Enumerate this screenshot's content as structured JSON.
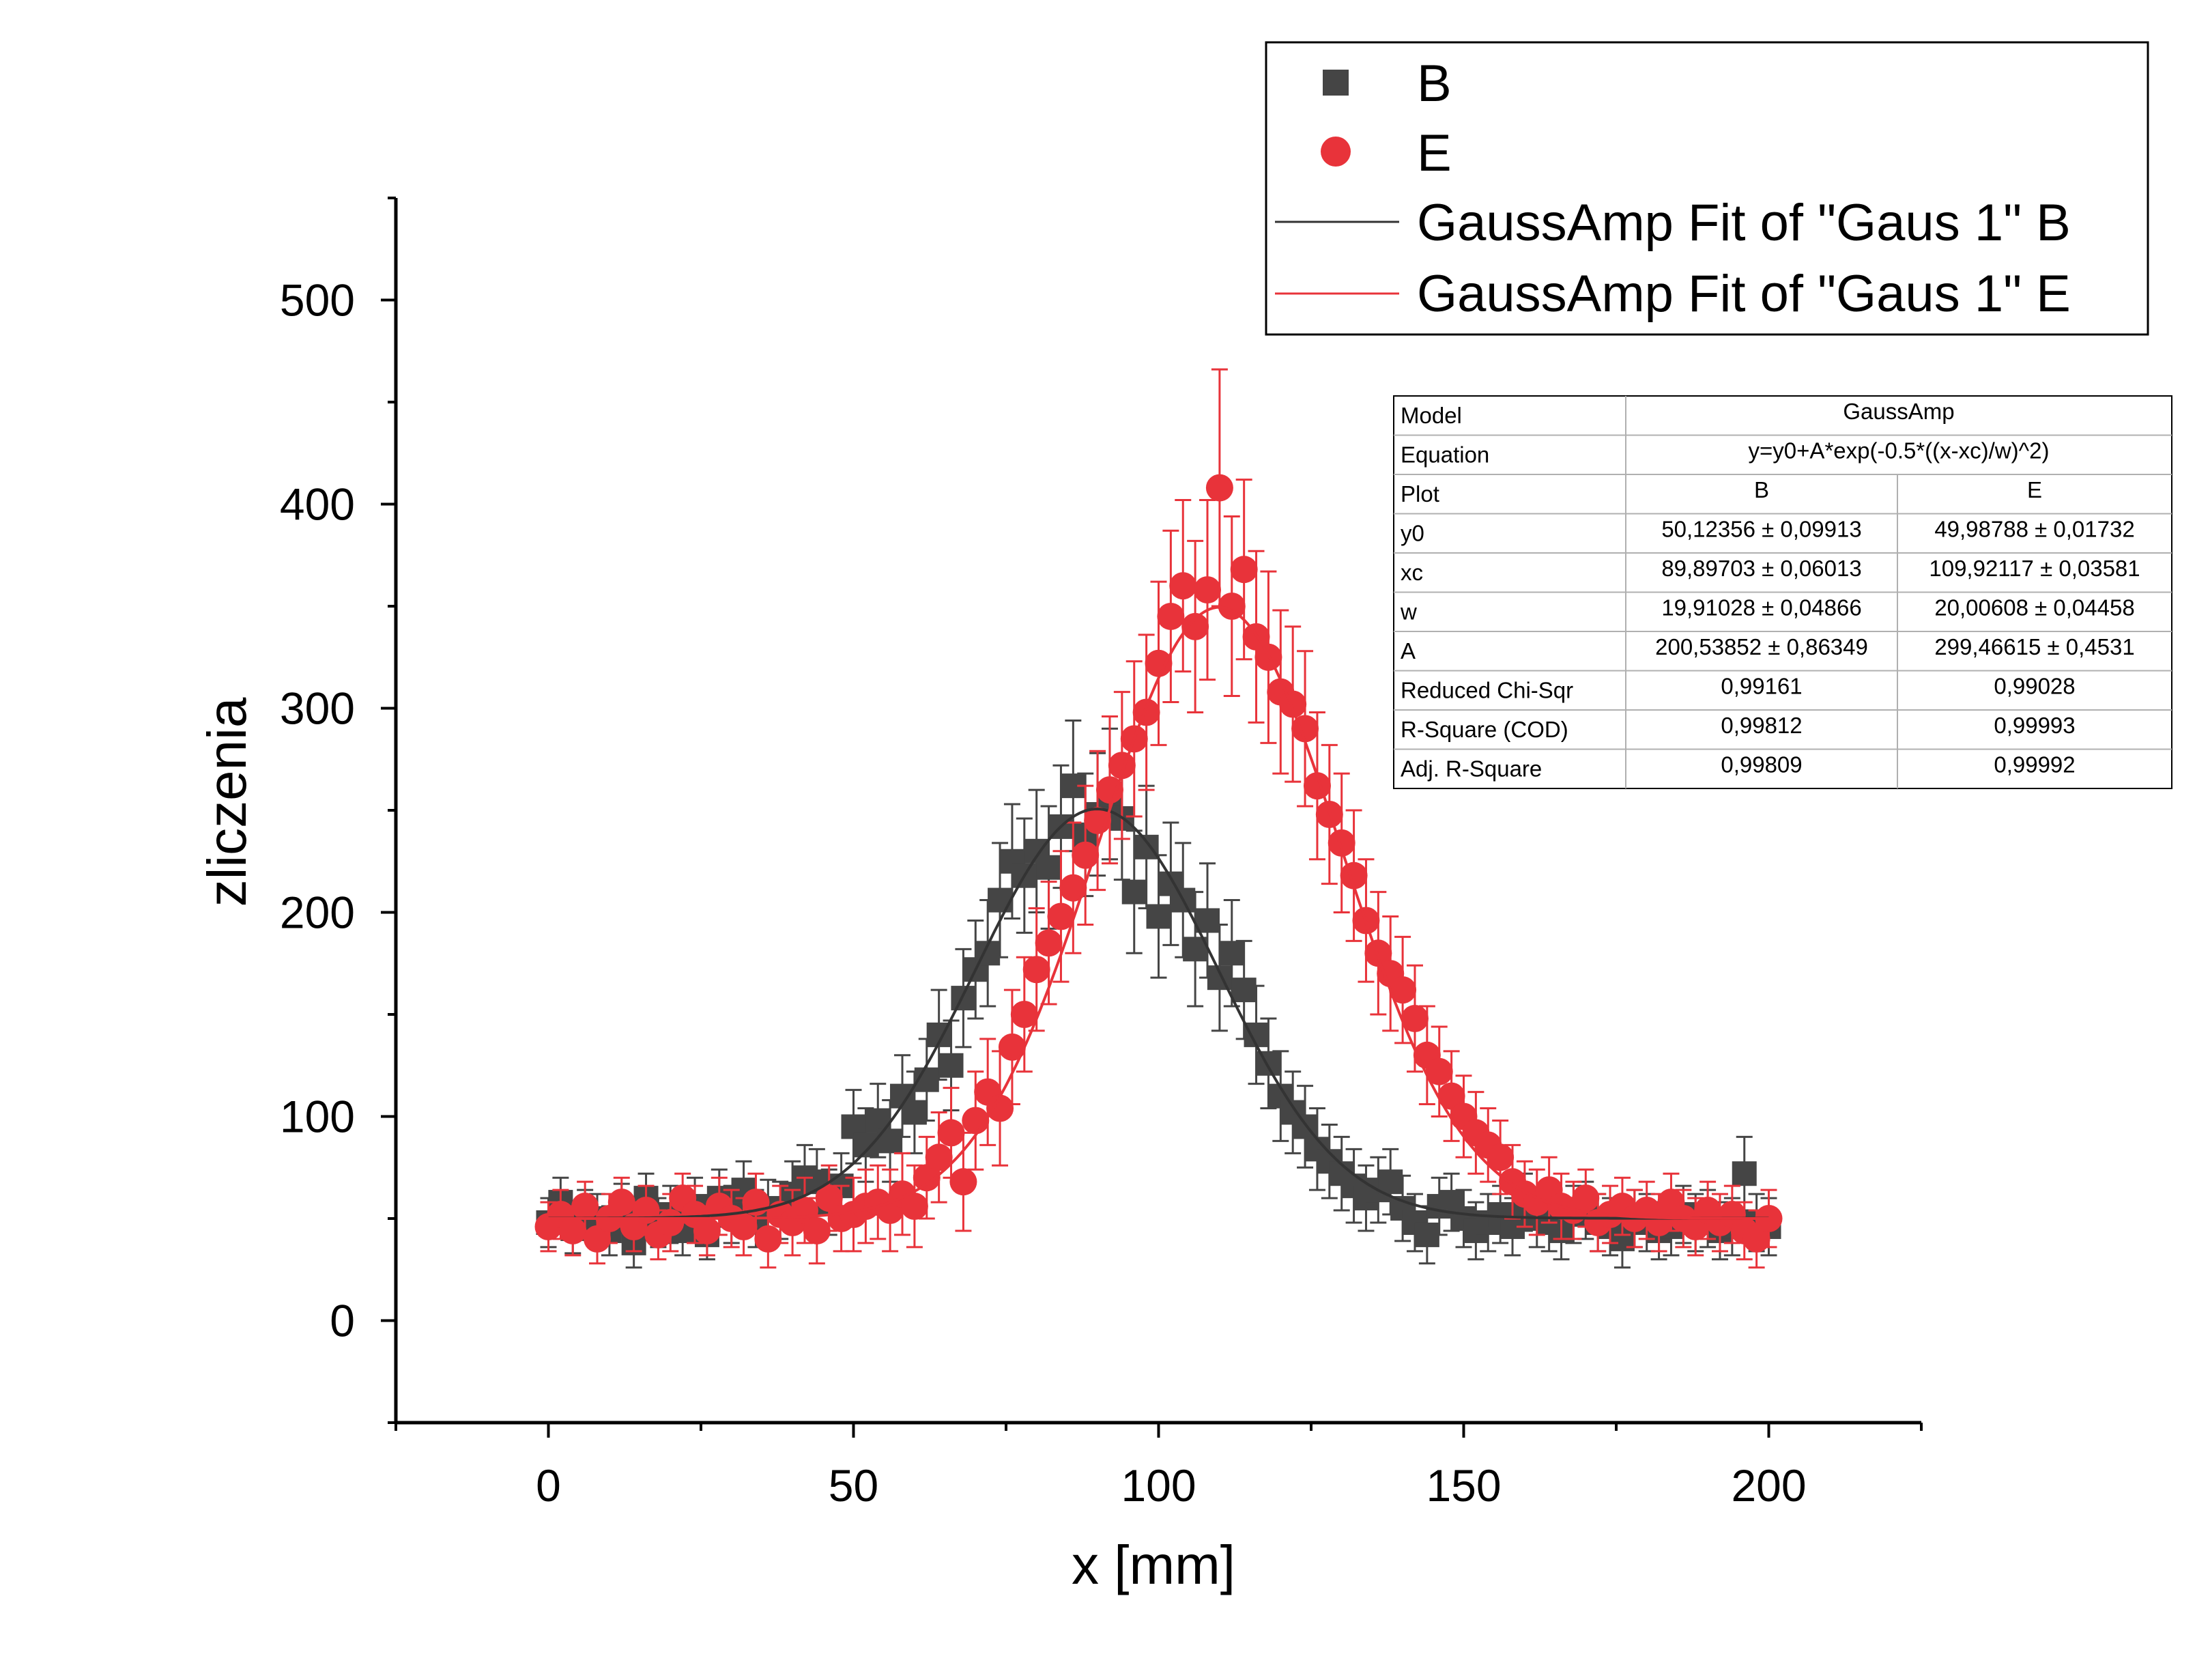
{
  "chart_data": {
    "type": "scatter",
    "xlabel": "x [mm]",
    "ylabel": "zliczenia",
    "xlim": [
      -25,
      225
    ],
    "ylim": [
      -50,
      550
    ],
    "xticks": [
      0,
      50,
      100,
      150,
      200
    ],
    "yticks": [
      0,
      100,
      200,
      300,
      400,
      500
    ],
    "xtick_labels": [
      "0",
      "50",
      "100",
      "150",
      "200"
    ],
    "ytick_labels": [
      "0",
      "100",
      "200",
      "300",
      "400",
      "500"
    ],
    "legend_position": "top-right",
    "series": [
      {
        "name": "B",
        "marker": "square",
        "color": "#454545",
        "x": [
          0,
          2,
          4,
          6,
          8,
          10,
          12,
          14,
          16,
          18,
          20,
          22,
          24,
          26,
          28,
          30,
          32,
          34,
          36,
          38,
          40,
          42,
          44,
          46,
          48,
          50,
          52,
          54,
          56,
          58,
          60,
          62,
          64,
          66,
          68,
          70,
          72,
          74,
          76,
          78,
          80,
          82,
          84,
          86,
          88,
          90,
          92,
          94,
          96,
          98,
          100,
          102,
          104,
          106,
          108,
          110,
          112,
          114,
          116,
          118,
          120,
          122,
          124,
          126,
          128,
          130,
          132,
          134,
          136,
          138,
          140,
          142,
          144,
          146,
          148,
          150,
          152,
          154,
          156,
          158,
          160,
          162,
          164,
          166,
          168,
          170,
          172,
          174,
          176,
          178,
          180,
          182,
          184,
          186,
          188,
          190,
          192,
          194,
          196,
          198,
          200
        ],
        "y": [
          48,
          58,
          45,
          52,
          50,
          44,
          55,
          38,
          60,
          48,
          52,
          44,
          56,
          42,
          60,
          52,
          64,
          50,
          55,
          54,
          62,
          70,
          68,
          58,
          66,
          95,
          86,
          98,
          88,
          110,
          102,
          118,
          140,
          125,
          158,
          172,
          180,
          206,
          225,
          218,
          230,
          222,
          242,
          262,
          238,
          248,
          258,
          246,
          210,
          232,
          198,
          214,
          206,
          182,
          196,
          168,
          180,
          162,
          140,
          126,
          110,
          102,
          95,
          84,
          78,
          72,
          66,
          60,
          64,
          68,
          55,
          48,
          42,
          56,
          58,
          50,
          44,
          48,
          52,
          46,
          58,
          50,
          48,
          44,
          52,
          54,
          48,
          46,
          40,
          50,
          48,
          44,
          46,
          52,
          48,
          50,
          44,
          46,
          72,
          48,
          46
        ],
        "err": [
          12,
          12,
          12,
          12,
          12,
          12,
          12,
          12,
          12,
          12,
          14,
          12,
          14,
          12,
          14,
          14,
          14,
          14,
          14,
          14,
          16,
          16,
          16,
          16,
          16,
          18,
          18,
          18,
          20,
          20,
          20,
          20,
          22,
          22,
          24,
          24,
          26,
          28,
          28,
          28,
          30,
          30,
          30,
          32,
          30,
          30,
          32,
          30,
          30,
          30,
          30,
          30,
          28,
          28,
          28,
          26,
          26,
          24,
          24,
          22,
          22,
          20,
          20,
          20,
          18,
          18,
          18,
          16,
          16,
          16,
          16,
          14,
          14,
          14,
          14,
          14,
          14,
          14,
          14,
          14,
          14,
          14,
          14,
          14,
          14,
          14,
          14,
          14,
          14,
          14,
          14,
          14,
          14,
          14,
          14,
          14,
          14,
          14,
          18,
          14,
          14
        ]
      },
      {
        "name": "E",
        "marker": "circle",
        "color": "#e8333a",
        "x": [
          0,
          2,
          4,
          6,
          8,
          10,
          12,
          14,
          16,
          18,
          20,
          22,
          24,
          26,
          28,
          30,
          32,
          34,
          36,
          38,
          40,
          42,
          44,
          46,
          48,
          50,
          52,
          54,
          56,
          58,
          60,
          62,
          64,
          66,
          68,
          70,
          72,
          74,
          76,
          78,
          80,
          82,
          84,
          86,
          88,
          90,
          92,
          94,
          96,
          98,
          100,
          102,
          104,
          106,
          108,
          110,
          112,
          114,
          116,
          118,
          120,
          122,
          124,
          126,
          128,
          130,
          132,
          134,
          136,
          138,
          140,
          142,
          144,
          146,
          148,
          150,
          152,
          154,
          156,
          158,
          160,
          162,
          164,
          166,
          168,
          170,
          172,
          174,
          176,
          178,
          180,
          182,
          184,
          186,
          188,
          190,
          192,
          194,
          196,
          198,
          200
        ],
        "y": [
          46,
          52,
          44,
          56,
          40,
          50,
          58,
          46,
          54,
          42,
          48,
          60,
          52,
          44,
          56,
          50,
          46,
          58,
          40,
          52,
          48,
          54,
          44,
          60,
          50,
          52,
          56,
          58,
          54,
          62,
          56,
          70,
          80,
          92,
          68,
          98,
          112,
          104,
          134,
          150,
          172,
          185,
          198,
          212,
          228,
          245,
          260,
          272,
          285,
          298,
          322,
          345,
          360,
          340,
          358,
          408,
          350,
          368,
          335,
          325,
          308,
          302,
          290,
          262,
          248,
          234,
          218,
          196,
          180,
          170,
          162,
          148,
          130,
          122,
          110,
          100,
          92,
          86,
          80,
          68,
          62,
          58,
          64,
          56,
          54,
          60,
          48,
          52,
          56,
          50,
          54,
          48,
          58,
          50,
          46,
          54,
          48,
          52,
          44,
          40,
          50
        ],
        "err": [
          12,
          12,
          12,
          12,
          12,
          12,
          12,
          12,
          12,
          12,
          14,
          12,
          14,
          12,
          14,
          14,
          14,
          14,
          14,
          14,
          16,
          16,
          16,
          16,
          16,
          18,
          18,
          18,
          20,
          20,
          20,
          20,
          22,
          22,
          24,
          24,
          26,
          28,
          28,
          28,
          30,
          30,
          32,
          32,
          34,
          34,
          36,
          36,
          38,
          38,
          40,
          42,
          42,
          42,
          44,
          58,
          44,
          44,
          42,
          42,
          40,
          38,
          38,
          36,
          34,
          34,
          32,
          30,
          30,
          28,
          26,
          26,
          24,
          22,
          22,
          20,
          20,
          18,
          18,
          18,
          16,
          16,
          16,
          16,
          14,
          14,
          14,
          14,
          14,
          14,
          14,
          14,
          14,
          14,
          14,
          14,
          14,
          14,
          14,
          14,
          14
        ]
      },
      {
        "name": "GaussAmp Fit of \"Gaus 1\" B",
        "type": "line",
        "color": "#333333",
        "model": "GaussAmp",
        "y0": 50.12356,
        "xc": 89.89703,
        "w": 19.91028,
        "A": 200.53852
      },
      {
        "name": "GaussAmp Fit of \"Gaus 1\" E",
        "type": "line",
        "color": "#e8333a",
        "model": "GaussAmp",
        "y0": 49.98788,
        "xc": 109.92117,
        "w": 20.00608,
        "A": 299.46615
      }
    ],
    "fit_table": {
      "rows": [
        [
          "Model",
          "GaussAmp",
          ""
        ],
        [
          "Equation",
          "y=y0+A*exp(-0.5*((x-xc)/w)^2)",
          ""
        ],
        [
          "Plot",
          "B",
          "E"
        ],
        [
          "y0",
          "50,12356 ± 0,09913",
          "49,98788 ± 0,01732"
        ],
        [
          "xc",
          "89,89703 ± 0,06013",
          "109,92117 ± 0,03581"
        ],
        [
          "w",
          "19,91028 ± 0,04866",
          "20,00608 ± 0,04458"
        ],
        [
          "A",
          "200,53852 ± 0,86349",
          "299,46615 ± 0,4531"
        ],
        [
          "Reduced Chi-Sqr",
          "0,99161",
          "0,99028"
        ],
        [
          "R-Square (COD)",
          "0,99812",
          "0,99993"
        ],
        [
          "Adj. R-Square",
          "0,99809",
          "0,99992"
        ]
      ]
    }
  }
}
